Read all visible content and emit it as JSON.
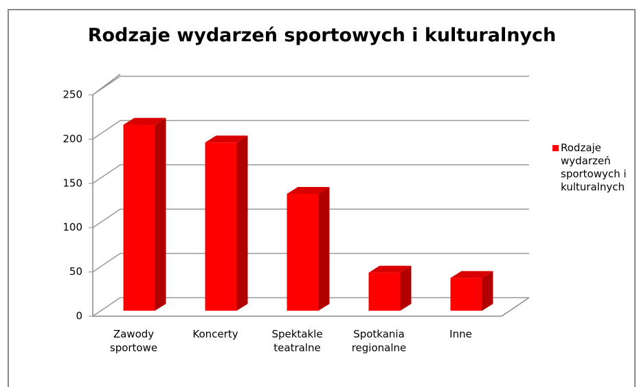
{
  "chart_data": {
    "type": "bar",
    "title": "Rodzaje wydarzeń sportowych i kulturalnych",
    "categories": [
      "Zawody sportowe",
      "Koncerty",
      "Spektakle teatralne",
      "Spotkania regionalne",
      "Inne"
    ],
    "series": [
      {
        "name": "Rodzaje wydarzeń sportowych i kulturalnych",
        "color": "#ff0000",
        "values": [
          210,
          190,
          132,
          43,
          37
        ]
      }
    ],
    "ylim": [
      0,
      250
    ],
    "yticks": [
      0,
      50,
      100,
      150,
      200,
      250
    ],
    "grid": true,
    "legend": "right"
  }
}
